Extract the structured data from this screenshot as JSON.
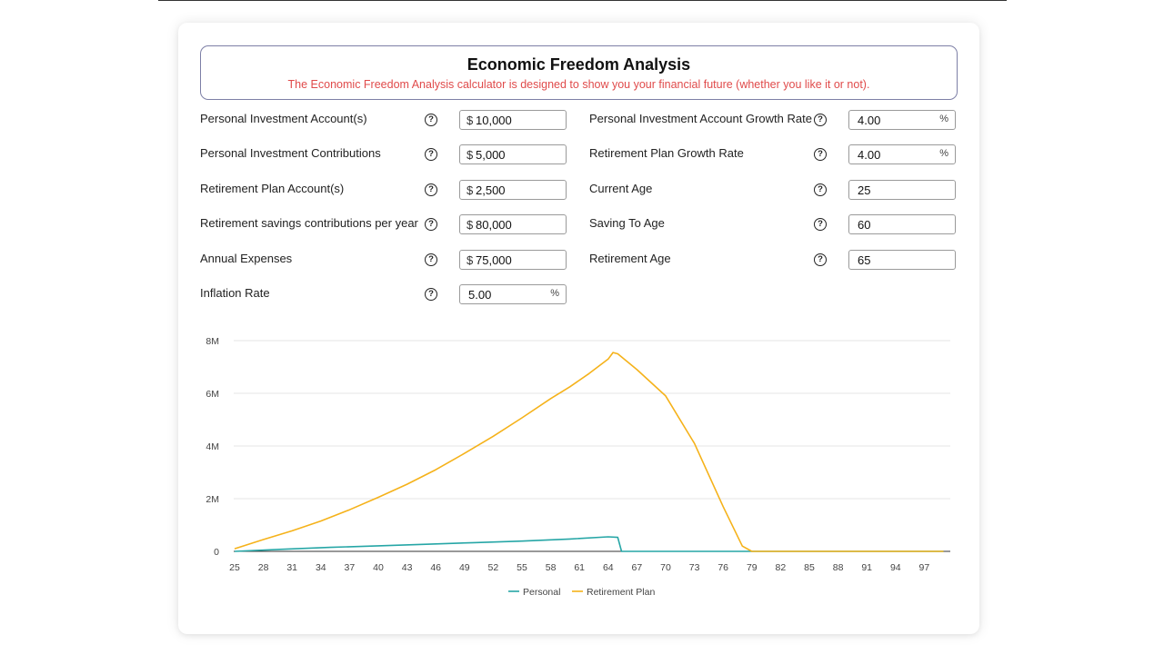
{
  "header": {
    "title": "Economic Freedom Analysis",
    "subtitle": "The Economic Freedom Analysis calculator is designed to show you your financial future (whether you like it or not)."
  },
  "fields_left": [
    {
      "label": "Personal Investment Account(s)",
      "prefix": "$",
      "value": "10,000",
      "suffix": ""
    },
    {
      "label": "Personal Investment Contributions",
      "prefix": "$",
      "value": "5,000",
      "suffix": ""
    },
    {
      "label": "Retirement Plan Account(s)",
      "prefix": "$",
      "value": "2,500",
      "suffix": ""
    },
    {
      "label": "Retirement savings contributions per year",
      "prefix": "$",
      "value": "80,000",
      "suffix": ""
    },
    {
      "label": "Annual Expenses",
      "prefix": "$",
      "value": "75,000",
      "suffix": ""
    },
    {
      "label": "Inflation Rate",
      "prefix": "",
      "value": "5.00",
      "suffix": "%"
    }
  ],
  "fields_right": [
    {
      "label": "Personal Investment Account Growth Rate",
      "prefix": "",
      "value": "4.00",
      "suffix": "%"
    },
    {
      "label": "Retirement Plan Growth Rate",
      "prefix": "",
      "value": "4.00",
      "suffix": "%"
    },
    {
      "label": "Current Age",
      "prefix": "",
      "value": "25",
      "suffix": ""
    },
    {
      "label": "Saving To Age",
      "prefix": "",
      "value": "60",
      "suffix": ""
    },
    {
      "label": "Retirement Age",
      "prefix": "",
      "value": "65",
      "suffix": ""
    }
  ],
  "help_icon": {
    "glyph": "?",
    "icon": "question-circle-icon"
  },
  "chart_data": {
    "type": "line",
    "x_tick_labels": [
      "25",
      "28",
      "31",
      "34",
      "37",
      "40",
      "43",
      "46",
      "49",
      "52",
      "55",
      "58",
      "61",
      "64",
      "67",
      "70",
      "73",
      "76",
      "79",
      "82",
      "85",
      "88",
      "91",
      "94",
      "97"
    ],
    "y_tick_labels": [
      "0",
      "2M",
      "4M",
      "6M",
      "8M"
    ],
    "xlim": [
      25,
      99
    ],
    "ylim": [
      0,
      8000000
    ],
    "grid": true,
    "legend_position": "bottom",
    "series": [
      {
        "name": "Personal",
        "color": "#26a6a6",
        "x": [
          25,
          30,
          35,
          40,
          45,
          50,
          55,
          60,
          64,
          65,
          65.4,
          66,
          70,
          80,
          90,
          99
        ],
        "y": [
          0,
          80000,
          150000,
          210000,
          270000,
          330000,
          390000,
          470000,
          550000,
          530000,
          0,
          0,
          0,
          0,
          0,
          0
        ]
      },
      {
        "name": "Retirement Plan",
        "color": "#f5b21a",
        "x": [
          25,
          28,
          31,
          34,
          37,
          40,
          43,
          46,
          49,
          52,
          55,
          58,
          60,
          62,
          64,
          64.5,
          65,
          67,
          70,
          73,
          76,
          78,
          79,
          80,
          90,
          99
        ],
        "y": [
          100000,
          450000,
          780000,
          1150000,
          1580000,
          2050000,
          2550000,
          3100000,
          3720000,
          4370000,
          5070000,
          5800000,
          6250000,
          6750000,
          7300000,
          7550000,
          7500000,
          6900000,
          5900000,
          4100000,
          1700000,
          200000,
          0,
          0,
          0,
          0
        ]
      }
    ]
  }
}
